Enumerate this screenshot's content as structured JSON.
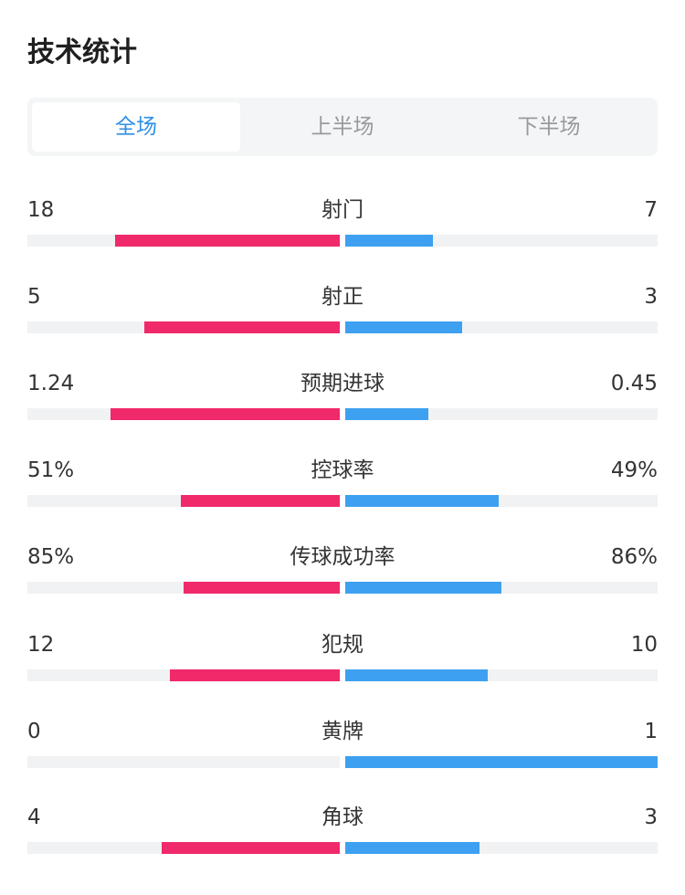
{
  "title": "技术统计",
  "tabs": [
    {
      "label": "全场",
      "active": true
    },
    {
      "label": "上半场",
      "active": false
    },
    {
      "label": "下半场",
      "active": false
    }
  ],
  "colors": {
    "home": "#f0296a",
    "away": "#3ea0f0",
    "active_tab": "#2e8fe6",
    "track": "#f1f2f4"
  },
  "stats": [
    {
      "label": "射门",
      "home": "18",
      "away": "7",
      "home_ratio": 0.72,
      "away_ratio": 0.28
    },
    {
      "label": "射正",
      "home": "5",
      "away": "3",
      "home_ratio": 0.625,
      "away_ratio": 0.375
    },
    {
      "label": "预期进球",
      "home": "1.24",
      "away": "0.45",
      "home_ratio": 0.734,
      "away_ratio": 0.266
    },
    {
      "label": "控球率",
      "home": "51%",
      "away": "49%",
      "home_ratio": 0.51,
      "away_ratio": 0.49
    },
    {
      "label": "传球成功率",
      "home": "85%",
      "away": "86%",
      "home_ratio": 0.5,
      "away_ratio": 0.5
    },
    {
      "label": "犯规",
      "home": "12",
      "away": "10",
      "home_ratio": 0.545,
      "away_ratio": 0.455
    },
    {
      "label": "黄牌",
      "home": "0",
      "away": "1",
      "home_ratio": 0.0,
      "away_ratio": 1.0
    },
    {
      "label": "角球",
      "home": "4",
      "away": "3",
      "home_ratio": 0.571,
      "away_ratio": 0.429
    }
  ]
}
